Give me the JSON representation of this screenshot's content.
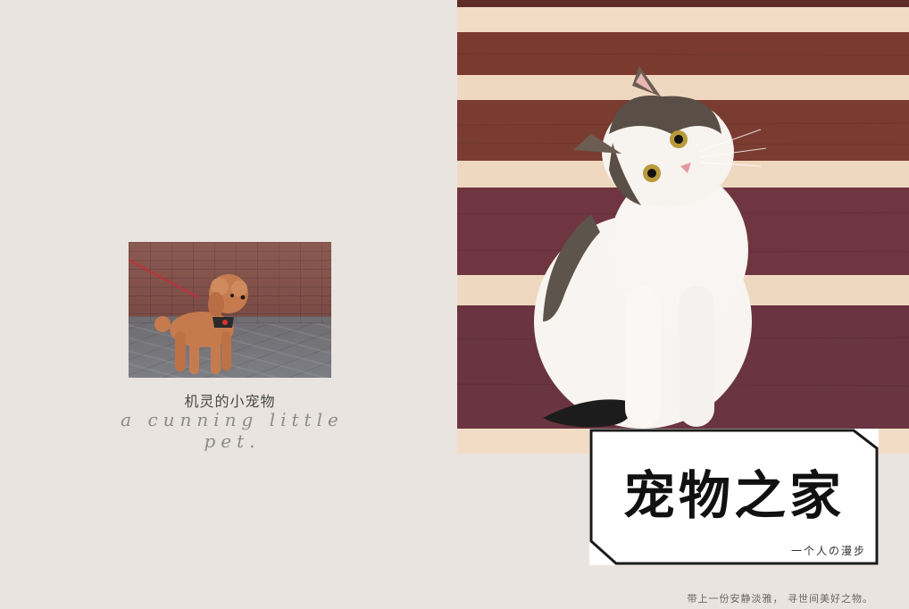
{
  "left": {
    "caption_cn": "机灵的小宠物",
    "caption_en": "a cunning little pet."
  },
  "title": {
    "main": "宠物之家",
    "sub": "一个人の漫步"
  },
  "footer": {
    "text": "带上一份安静淡雅，  寻世间美好之物。"
  },
  "icons": {
    "dog_photo": "dog-photo",
    "cat_photo": "cat-photo"
  },
  "colors": {
    "background": "#e9e4df",
    "stair_wood": "#8b4a3c",
    "stair_light": "#efd8c0",
    "title_border": "#1a1a1a"
  }
}
